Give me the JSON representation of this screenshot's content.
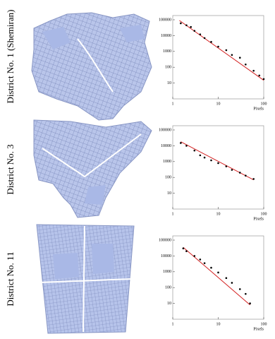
{
  "row_labels": [
    "District No. 1 (Shemiran)",
    "District No. 3",
    "District No. 11"
  ],
  "chart_data": [
    {
      "type": "scatter",
      "xlabel": "Pixels",
      "log_x": true,
      "log_y": true,
      "x": [
        1.5,
        2,
        2.5,
        3,
        4,
        5,
        7,
        10,
        15,
        20,
        30,
        40,
        60,
        80,
        100
      ],
      "values": [
        60000,
        45000,
        35000,
        20000,
        12000,
        7000,
        4000,
        2000,
        1200,
        600,
        400,
        150,
        60,
        30,
        18
      ],
      "color": "#000000",
      "fit": {
        "x": [
          1.4,
          100
        ],
        "values": [
          90000,
          15
        ],
        "color": "#d42020"
      },
      "xlim": [
        1,
        100
      ],
      "ylim": [
        1,
        100000
      ],
      "xticks": [
        1,
        10,
        100
      ],
      "yticks": [
        10,
        100,
        1000,
        10000,
        100000
      ]
    },
    {
      "type": "scatter",
      "xlabel": "Pixels",
      "log_x": true,
      "log_y": true,
      "x": [
        1.5,
        2,
        3,
        4,
        5,
        7,
        10,
        15,
        20,
        30,
        40,
        60
      ],
      "values": [
        15000,
        10000,
        5000,
        2500,
        1800,
        1200,
        800,
        500,
        300,
        200,
        130,
        80
      ],
      "color": "#000000",
      "fit": {
        "x": [
          1.5,
          60
        ],
        "values": [
          18000,
          70
        ],
        "color": "#d42020"
      },
      "xlim": [
        1,
        100
      ],
      "ylim": [
        1,
        100000
      ],
      "xticks": [
        1,
        10,
        100
      ],
      "yticks": [
        10,
        100,
        1000,
        10000,
        100000
      ]
    },
    {
      "type": "scatter",
      "xlabel": "Pixels",
      "log_x": true,
      "log_y": true,
      "x": [
        1.7,
        2,
        3,
        4,
        5,
        7,
        10,
        15,
        20,
        30,
        40,
        50
      ],
      "values": [
        30000,
        20000,
        10000,
        6000,
        3500,
        1800,
        900,
        400,
        200,
        80,
        40,
        10
      ],
      "color": "#000000",
      "fit": {
        "x": [
          1.7,
          50
        ],
        "values": [
          35000,
          8
        ],
        "color": "#d42020"
      },
      "xlim": [
        1,
        100
      ],
      "ylim": [
        1,
        100000
      ],
      "xticks": [
        1,
        10,
        100
      ],
      "yticks": [
        10,
        100,
        1000,
        10000,
        100000
      ]
    }
  ]
}
